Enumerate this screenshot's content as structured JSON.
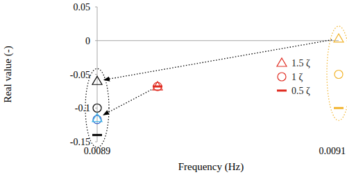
{
  "chart_data": {
    "type": "scatter",
    "x_label": "Frequency (Hz)",
    "y_label": "Real value (-)",
    "xlim": [
      0.0089,
      0.0091
    ],
    "xticks": [
      0.0089,
      0.0091
    ],
    "ylim": [
      -0.15,
      0.05
    ],
    "yticks": [
      0.05,
      0,
      -0.05,
      -0.1,
      -0.15
    ],
    "legend": "right",
    "series": [
      {
        "name": "1.5 ζ",
        "marker": "triangle",
        "color": "#e02b20",
        "x": [
          0.0089,
          0.0089,
          0.00895,
          0.0091
        ],
        "values": [
          -0.06,
          -0.115,
          -0.068,
          0.003
        ],
        "colors": [
          "#000000",
          "#3cb4e6",
          "#e02b20",
          "#f2b42c"
        ]
      },
      {
        "name": "1 ζ",
        "marker": "circle",
        "color": "#e02b20",
        "x": [
          0.0089,
          0.0089,
          0.00895,
          0.0091
        ],
        "values": [
          -0.1,
          -0.117,
          -0.068,
          -0.05
        ],
        "colors": [
          "#000000",
          "#2457c8",
          "#e02b20",
          "#f2b42c"
        ]
      },
      {
        "name": "0.5 ζ",
        "marker": "dash",
        "color": "#e02b20",
        "x": [
          0.0089,
          0.00895,
          0.0091
        ],
        "values": [
          -0.14,
          -0.068,
          -0.1
        ],
        "colors": [
          "#000000",
          "#e02b20",
          "#f2b42c"
        ]
      }
    ]
  }
}
